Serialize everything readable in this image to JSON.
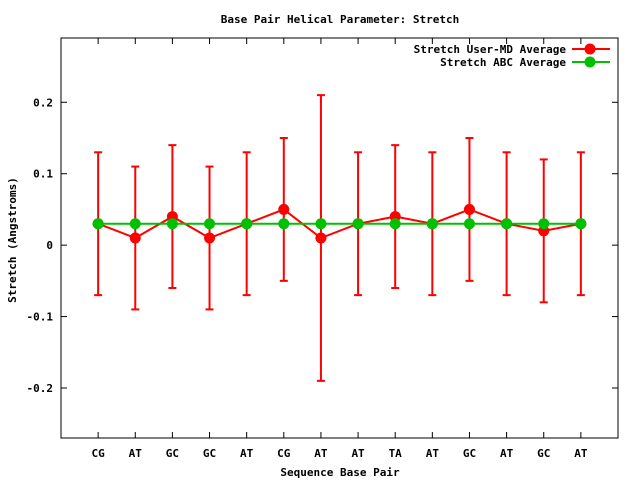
{
  "chart_data": {
    "type": "line",
    "title": "Base Pair Helical Parameter: Stretch",
    "xlabel": "Sequence Base Pair",
    "ylabel": "Stretch (Angstroms)",
    "categories": [
      "CG",
      "AT",
      "GC",
      "GC",
      "AT",
      "CG",
      "AT",
      "AT",
      "TA",
      "AT",
      "GC",
      "AT",
      "GC",
      "AT"
    ],
    "ylim": [
      -0.27,
      0.29
    ],
    "yticks": [
      -0.2,
      -0.1,
      0,
      0.1,
      0.2
    ],
    "ytick_labels": [
      "-0.2",
      "-0.1",
      "0",
      "0.1",
      "0.2"
    ],
    "grid": false,
    "legend_position": "top-right",
    "series": [
      {
        "name": "Stretch User-MD Average",
        "color": "#ff0000",
        "values": [
          0.03,
          0.01,
          0.04,
          0.01,
          0.03,
          0.05,
          0.01,
          0.03,
          0.04,
          0.03,
          0.05,
          0.03,
          0.02,
          0.03
        ],
        "error_low": [
          -0.07,
          -0.09,
          -0.06,
          -0.09,
          -0.07,
          -0.05,
          -0.19,
          -0.07,
          -0.06,
          -0.07,
          -0.05,
          -0.07,
          -0.08,
          -0.07
        ],
        "error_high": [
          0.13,
          0.11,
          0.14,
          0.11,
          0.13,
          0.15,
          0.21,
          0.13,
          0.14,
          0.13,
          0.15,
          0.13,
          0.12,
          0.13
        ]
      },
      {
        "name": "Stretch ABC Average",
        "color": "#00c000",
        "values": [
          0.03,
          0.03,
          0.03,
          0.03,
          0.03,
          0.03,
          0.03,
          0.03,
          0.03,
          0.03,
          0.03,
          0.03,
          0.03,
          0.03
        ]
      }
    ]
  }
}
